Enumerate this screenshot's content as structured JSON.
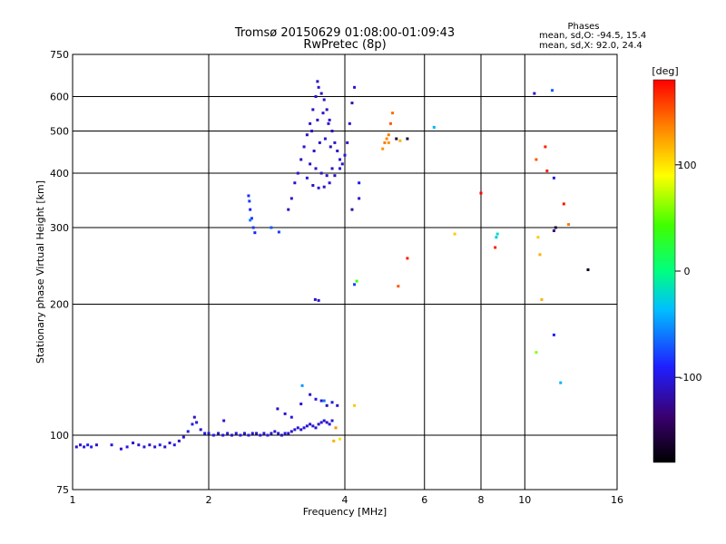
{
  "chart_data": {
    "type": "scatter",
    "title": "Tromsø 20150629 01:08:00-01:09:43",
    "subtitle": "RwPretec (8p)",
    "legend_title": "Phases",
    "stats": [
      "mean, sd,O: -94.5, 15.4",
      "mean, sd,X:  92.0, 24.4"
    ],
    "xlabel": "Frequency [MHz]",
    "ylabel": "Stationary phase Virtual Height [km]",
    "x_scale": "log",
    "y_scale": "log",
    "xlim": [
      1,
      16
    ],
    "ylim": [
      75,
      750
    ],
    "x_ticks": [
      1,
      2,
      4,
      6,
      8,
      10,
      16
    ],
    "y_ticks": [
      75,
      100,
      200,
      300,
      400,
      500,
      600,
      750
    ],
    "grid": true,
    "colorbar": {
      "label": "[deg]",
      "range": [
        -180,
        180
      ],
      "ticks": [
        100,
        0,
        -100
      ]
    },
    "points": [
      [
        1.02,
        94,
        -110
      ],
      [
        1.04,
        95,
        -105
      ],
      [
        1.06,
        94,
        -100
      ],
      [
        1.08,
        95,
        -95
      ],
      [
        1.1,
        94,
        -90
      ],
      [
        1.13,
        95,
        -110
      ],
      [
        1.22,
        95,
        -105
      ],
      [
        1.28,
        93,
        -110
      ],
      [
        1.32,
        94,
        -100
      ],
      [
        1.36,
        96,
        -110
      ],
      [
        1.4,
        95,
        -105
      ],
      [
        1.44,
        94,
        -100
      ],
      [
        1.48,
        95,
        -110
      ],
      [
        1.52,
        94,
        -105
      ],
      [
        1.56,
        95,
        -95
      ],
      [
        1.6,
        94,
        -110
      ],
      [
        1.64,
        96,
        -105
      ],
      [
        1.68,
        95,
        -100
      ],
      [
        1.72,
        97,
        -110
      ],
      [
        1.76,
        99,
        -105
      ],
      [
        1.8,
        102,
        -100
      ],
      [
        1.84,
        106,
        -95
      ],
      [
        1.86,
        110,
        -110
      ],
      [
        1.88,
        107,
        -105
      ],
      [
        1.92,
        103,
        -110
      ],
      [
        1.96,
        101,
        -100
      ],
      [
        2.0,
        101,
        -105
      ],
      [
        2.05,
        100,
        -95
      ],
      [
        2.1,
        101,
        -110
      ],
      [
        2.15,
        100,
        -105
      ],
      [
        2.2,
        101,
        -100
      ],
      [
        2.25,
        100,
        -110
      ],
      [
        2.3,
        101,
        -105
      ],
      [
        2.35,
        100,
        -95
      ],
      [
        2.4,
        101,
        -110
      ],
      [
        2.45,
        100,
        -100
      ],
      [
        2.5,
        101,
        -105
      ],
      [
        2.55,
        101,
        -110
      ],
      [
        2.6,
        100,
        -100
      ],
      [
        2.65,
        101,
        -105
      ],
      [
        2.7,
        100,
        -95
      ],
      [
        2.75,
        101,
        -110
      ],
      [
        2.8,
        102,
        -100
      ],
      [
        2.85,
        101,
        -105
      ],
      [
        2.9,
        100,
        -110
      ],
      [
        2.95,
        101,
        -100
      ],
      [
        3.0,
        101,
        -105
      ],
      [
        3.05,
        102,
        -110
      ],
      [
        3.1,
        103,
        -100
      ],
      [
        3.15,
        104,
        -105
      ],
      [
        3.2,
        103,
        -110
      ],
      [
        3.25,
        104,
        -100
      ],
      [
        3.3,
        105,
        -105
      ],
      [
        3.35,
        106,
        -110
      ],
      [
        3.4,
        105,
        -100
      ],
      [
        3.45,
        104,
        -105
      ],
      [
        3.5,
        106,
        -110
      ],
      [
        3.55,
        107,
        -100
      ],
      [
        3.6,
        108,
        -105
      ],
      [
        3.65,
        107,
        -110
      ],
      [
        3.7,
        106,
        -100
      ],
      [
        3.75,
        108,
        -105
      ],
      [
        2.16,
        108,
        -100
      ],
      [
        2.84,
        115,
        -110
      ],
      [
        2.95,
        112,
        -105
      ],
      [
        3.05,
        110,
        -100
      ],
      [
        3.2,
        118,
        -105
      ],
      [
        3.35,
        124,
        -110
      ],
      [
        3.45,
        121,
        -100
      ],
      [
        3.55,
        120,
        -105
      ],
      [
        3.65,
        117,
        -110
      ],
      [
        3.75,
        119,
        -100
      ],
      [
        3.85,
        117,
        -105
      ],
      [
        3.22,
        130,
        -50
      ],
      [
        3.6,
        120,
        -60
      ],
      [
        3.78,
        97,
        120
      ],
      [
        3.82,
        104,
        130
      ],
      [
        3.9,
        98,
        100
      ],
      [
        4.2,
        117,
        110
      ],
      [
        2.45,
        355,
        -85
      ],
      [
        2.46,
        345,
        -80
      ],
      [
        2.47,
        330,
        -90
      ],
      [
        2.49,
        315,
        -85
      ],
      [
        2.51,
        300,
        -80
      ],
      [
        2.53,
        292,
        -90
      ],
      [
        2.47,
        312,
        -60
      ],
      [
        2.75,
        300,
        -70
      ],
      [
        2.86,
        293,
        -80
      ],
      [
        3.0,
        330,
        -110
      ],
      [
        3.05,
        350,
        -105
      ],
      [
        3.1,
        380,
        -110
      ],
      [
        3.15,
        400,
        -105
      ],
      [
        3.2,
        430,
        -110
      ],
      [
        3.25,
        460,
        -105
      ],
      [
        3.3,
        490,
        -110
      ],
      [
        3.35,
        520,
        -105
      ],
      [
        3.4,
        560,
        -110
      ],
      [
        3.45,
        600,
        -105
      ],
      [
        3.48,
        650,
        -110
      ],
      [
        3.5,
        630,
        -105
      ],
      [
        3.55,
        610,
        -110
      ],
      [
        3.6,
        590,
        -105
      ],
      [
        3.65,
        560,
        -110
      ],
      [
        3.7,
        530,
        -105
      ],
      [
        3.75,
        500,
        -110
      ],
      [
        3.8,
        470,
        -105
      ],
      [
        3.85,
        450,
        -110
      ],
      [
        3.9,
        430,
        -105
      ],
      [
        3.95,
        420,
        -110
      ],
      [
        4.0,
        440,
        -105
      ],
      [
        4.05,
        470,
        -110
      ],
      [
        4.1,
        520,
        -105
      ],
      [
        4.15,
        580,
        -110
      ],
      [
        4.2,
        630,
        -105
      ],
      [
        3.3,
        390,
        -105
      ],
      [
        3.4,
        375,
        -110
      ],
      [
        3.5,
        370,
        -105
      ],
      [
        3.6,
        372,
        -110
      ],
      [
        3.7,
        380,
        -105
      ],
      [
        3.8,
        395,
        -110
      ],
      [
        3.9,
        410,
        -105
      ],
      [
        3.35,
        420,
        -110
      ],
      [
        3.45,
        410,
        -105
      ],
      [
        3.55,
        400,
        -110
      ],
      [
        3.65,
        395,
        -105
      ],
      [
        3.75,
        410,
        -110
      ],
      [
        3.42,
        450,
        -105
      ],
      [
        3.52,
        470,
        -110
      ],
      [
        3.62,
        480,
        -105
      ],
      [
        3.72,
        460,
        -110
      ],
      [
        3.38,
        500,
        -105
      ],
      [
        3.48,
        530,
        -110
      ],
      [
        3.58,
        550,
        -105
      ],
      [
        3.68,
        520,
        -110
      ],
      [
        3.44,
        205,
        -110
      ],
      [
        3.5,
        204,
        -105
      ],
      [
        4.15,
        330,
        -120
      ],
      [
        4.3,
        350,
        -105
      ],
      [
        4.3,
        380,
        -100
      ],
      [
        4.2,
        222,
        -80
      ],
      [
        4.25,
        226,
        40
      ],
      [
        4.85,
        455,
        130
      ],
      [
        4.9,
        470,
        140
      ],
      [
        4.95,
        480,
        135
      ],
      [
        5.0,
        490,
        140
      ],
      [
        5.05,
        520,
        150
      ],
      [
        5.1,
        550,
        145
      ],
      [
        5.0,
        470,
        130
      ],
      [
        5.3,
        475,
        120
      ],
      [
        5.2,
        480,
        -160
      ],
      [
        5.5,
        480,
        -160
      ],
      [
        5.25,
        220,
        150
      ],
      [
        5.5,
        255,
        170
      ],
      [
        6.3,
        510,
        -40
      ],
      [
        7.0,
        290,
        110
      ],
      [
        8.0,
        360,
        180
      ],
      [
        8.6,
        270,
        170
      ],
      [
        8.65,
        285,
        -30
      ],
      [
        8.7,
        290,
        -20
      ],
      [
        10.5,
        610,
        -110
      ],
      [
        11.5,
        620,
        -70
      ],
      [
        10.6,
        430,
        150
      ],
      [
        11.1,
        460,
        170
      ],
      [
        11.2,
        405,
        170
      ],
      [
        11.6,
        390,
        -100
      ],
      [
        11.7,
        300,
        -160
      ],
      [
        11.6,
        295,
        -130
      ],
      [
        12.2,
        340,
        175
      ],
      [
        12.5,
        305,
        140
      ],
      [
        13.8,
        240,
        -170
      ],
      [
        10.7,
        285,
        110
      ],
      [
        10.8,
        260,
        120
      ],
      [
        10.9,
        205,
        120
      ],
      [
        10.6,
        155,
        60
      ],
      [
        11.6,
        170,
        -90
      ],
      [
        12.0,
        132,
        -40
      ]
    ]
  }
}
